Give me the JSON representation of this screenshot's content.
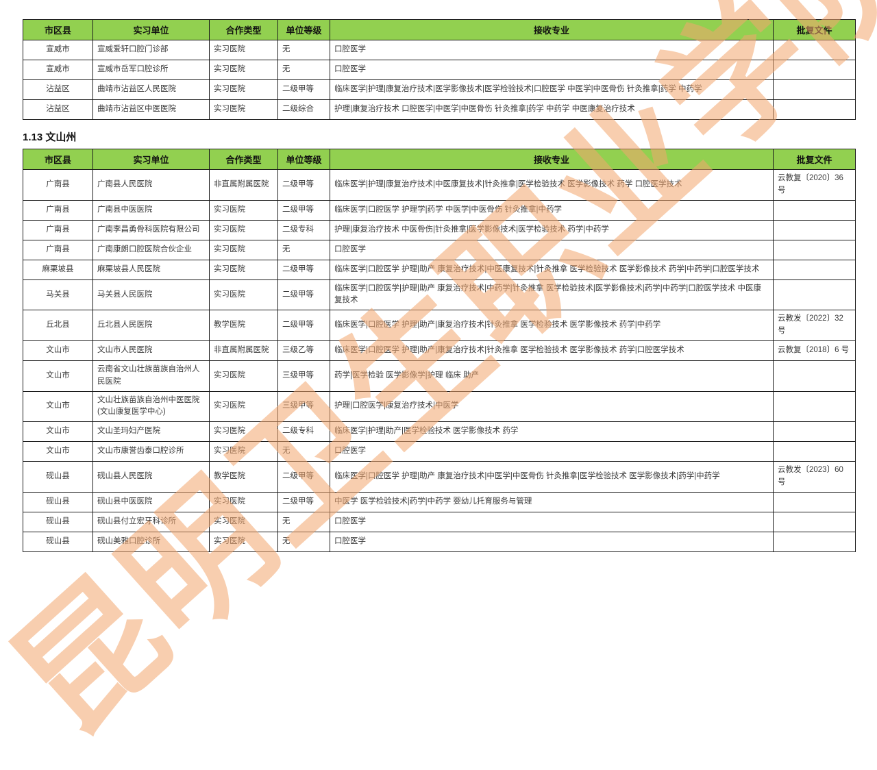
{
  "page": {
    "section_heading": "1.13 文山州",
    "watermark": "昆明卫生职业学院",
    "colors": {
      "header_bg": "#92D050",
      "border": "#1a1a1a",
      "watermark": "#F3A66E",
      "body_text": "#3a3a3a"
    }
  },
  "columns": [
    "市区县",
    "实习单位",
    "合作类型",
    "单位等级",
    "接收专业",
    "批复文件"
  ],
  "table1": {
    "rows": [
      {
        "county": "宣威市",
        "unit": "宣威爱轩口腔门诊部",
        "type": "实习医院",
        "level": "无",
        "majors": "口腔医学",
        "approval": ""
      },
      {
        "county": "宣威市",
        "unit": "宣威市岳军口腔诊所",
        "type": "实习医院",
        "level": "无",
        "majors": "口腔医学",
        "approval": ""
      },
      {
        "county": "沾益区",
        "unit": "曲靖市沾益区人民医院",
        "type": "实习医院",
        "level": "二级甲等",
        "majors": "临床医学|护理|康复治疗技术|医学影像技术|医学检验技术|口腔医学 中医学|中医骨伤 针灸推拿|药学 中药学",
        "approval": ""
      },
      {
        "county": "沾益区",
        "unit": "曲靖市沾益区中医医院",
        "type": "实习医院",
        "level": "二级综合",
        "majors": "护理|康复治疗技术 口腔医学|中医学|中医骨伤 针灸推拿|药学 中药学 中医康复治疗技术",
        "approval": ""
      }
    ]
  },
  "table2": {
    "rows": [
      {
        "county": "广南县",
        "unit": "广南县人民医院",
        "type": "非直属附属医院",
        "level": "二级甲等",
        "majors": "临床医学|护理|康复治疗技术|中医康复技术|针灸推拿|医学检验技术 医学影像技术 药学 口腔医学技术",
        "approval": "云教复〔2020〕36 号"
      },
      {
        "county": "广南县",
        "unit": "广南县中医医院",
        "type": "实习医院",
        "level": "二级甲等",
        "majors": "临床医学|口腔医学 护理学|药学 中医学|中医骨伤 针灸推拿|中药学",
        "approval": ""
      },
      {
        "county": "广南县",
        "unit": "广南李昌勇骨科医院有限公司",
        "type": "实习医院",
        "level": "二级专科",
        "majors": "护理|康复治疗技术 中医骨伤|针灸推拿|医学影像技术|医学检验技术 药学|中药学",
        "approval": ""
      },
      {
        "county": "广南县",
        "unit": "广南康朗口腔医院合伙企业",
        "type": "实习医院",
        "level": "无",
        "majors": "口腔医学",
        "approval": ""
      },
      {
        "county": "麻栗坡县",
        "unit": "麻栗坡县人民医院",
        "type": "实习医院",
        "level": "二级甲等",
        "majors": "临床医学|口腔医学 护理|助产 康复治疗技术|中医康复技术|针灸推拿 医学检验技术 医学影像技术 药学|中药学|口腔医学技术",
        "approval": ""
      },
      {
        "county": "马关县",
        "unit": "马关县人民医院",
        "type": "实习医院",
        "level": "二级甲等",
        "majors": "临床医学|口腔医学|护理|助产 康复治疗技术|中药学|针灸推拿 医学检验技术|医学影像技术|药学|中药学|口腔医学技术 中医康复技术",
        "approval": ""
      },
      {
        "county": "丘北县",
        "unit": "丘北县人民医院",
        "type": "教学医院",
        "level": "二级甲等",
        "majors": "临床医学|口腔医学 护理|助产|康复治疗技术|针灸推拿 医学检验技术 医学影像技术 药学|中药学",
        "approval": "云教发〔2022〕32 号"
      },
      {
        "county": "文山市",
        "unit": "文山市人民医院",
        "type": "非直属附属医院",
        "level": "三级乙等",
        "majors": "临床医学|口腔医学 护理|助产|康复治疗技术|针灸推拿 医学检验技术 医学影像技术 药学|口腔医学技术",
        "approval": "云教复〔2018〕6 号"
      },
      {
        "county": "文山市",
        "unit": "云南省文山壮族苗族自治州人民医院",
        "type": "实习医院",
        "level": "三级甲等",
        "majors": "药学|医学检验 医学影像学|护理 临床 助产",
        "approval": ""
      },
      {
        "county": "文山市",
        "unit": "文山壮族苗族自治州中医医院(文山康复医学中心)",
        "type": "实习医院",
        "level": "三级甲等",
        "majors": "护理|口腔医学|康复治疗技术|中医学",
        "approval": ""
      },
      {
        "county": "文山市",
        "unit": "文山圣玛妇产医院",
        "type": "实习医院",
        "level": "二级专科",
        "majors": "临床医学|护理|助产|医学检验技术 医学影像技术 药学",
        "approval": ""
      },
      {
        "county": "文山市",
        "unit": "文山市康誉齿泰口腔诊所",
        "type": "实习医院",
        "level": "无",
        "majors": "口腔医学",
        "approval": ""
      },
      {
        "county": "砚山县",
        "unit": "砚山县人民医院",
        "type": "教学医院",
        "level": "二级甲等",
        "majors": "临床医学|口腔医学 护理|助产 康复治疗技术|中医学|中医骨伤 针灸推拿|医学检验技术 医学影像技术|药学|中药学",
        "approval": "云教发〔2023〕60 号"
      },
      {
        "county": "砚山县",
        "unit": "砚山县中医医院",
        "type": "实习医院",
        "level": "二级甲等",
        "majors": "中医学 医学检验技术|药学|中药学 婴幼儿托育服务与管理",
        "approval": ""
      },
      {
        "county": "砚山县",
        "unit": "砚山县付立宏牙科诊所",
        "type": "实习医院",
        "level": "无",
        "majors": "口腔医学",
        "approval": ""
      },
      {
        "county": "砚山县",
        "unit": "砚山美雅口腔诊所",
        "type": "实习医院",
        "level": "无",
        "majors": "口腔医学",
        "approval": ""
      }
    ]
  }
}
